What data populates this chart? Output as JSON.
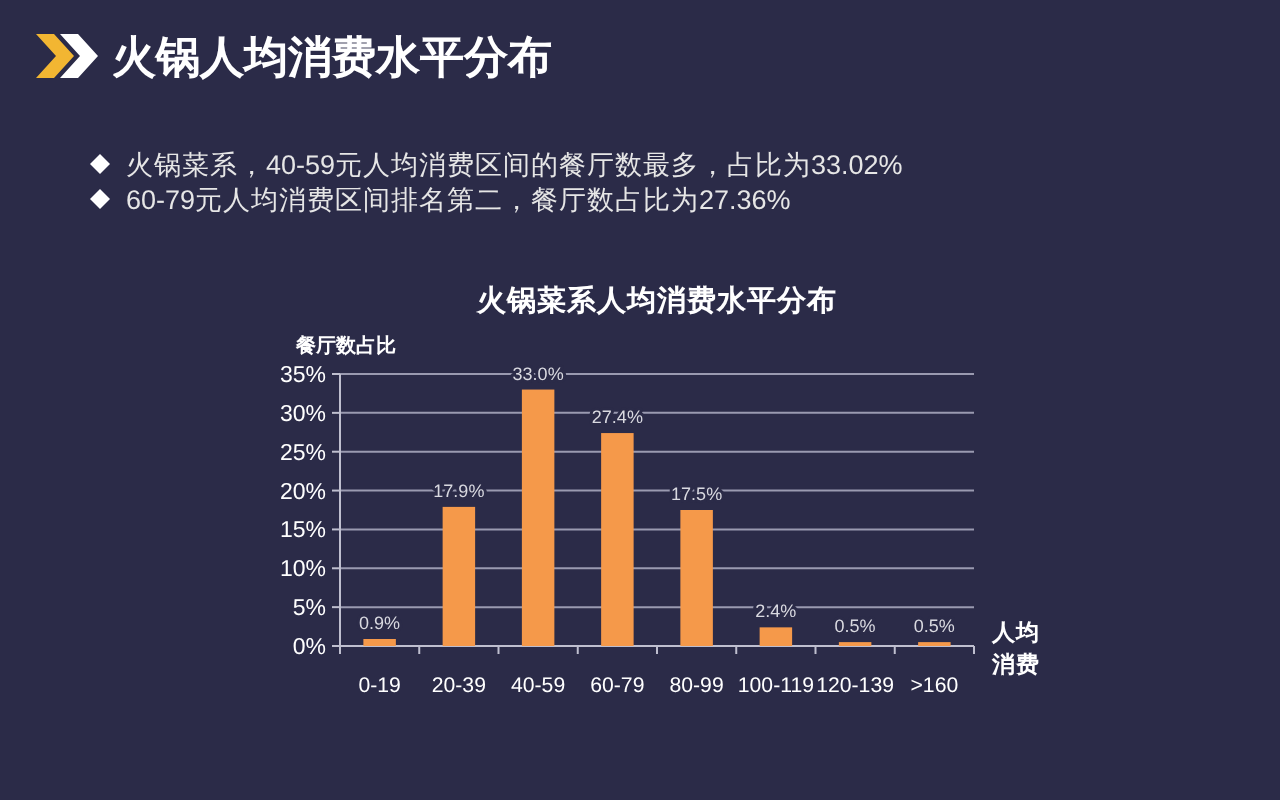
{
  "chart_data": {
    "type": "bar",
    "title": "火锅人均消费水平分布",
    "subtitle": "火锅菜系人均消费水平分布",
    "annotations": [
      "火锅菜系，40-59元人均消费区间的餐厅数最多，占比为33.02%",
      "60-79元人均消费区间排名第二，餐厅数占比为27.36%"
    ],
    "ylabel": "餐厅数占比",
    "xlabel": "人均消费",
    "categories": [
      "0-19",
      "20-39",
      "40-59",
      "60-79",
      "80-99",
      "100-119",
      "120-139",
      ">160"
    ],
    "values": [
      0.9,
      17.9,
      33.0,
      27.4,
      17.5,
      2.4,
      0.5,
      0.5
    ],
    "value_labels": [
      "0.9%",
      "17.9%",
      "33.0%",
      "27.4%",
      "17.5%",
      "2.4%",
      "0.5%",
      "0.5%"
    ],
    "color": "#f5994a",
    "ylim": [
      0,
      35
    ],
    "yticks": [
      {
        "value": 0,
        "label": "0%"
      },
      {
        "value": 5,
        "label": "5%"
      },
      {
        "value": 10,
        "label": "10%"
      },
      {
        "value": 15,
        "label": "15%"
      },
      {
        "value": 20,
        "label": "20%"
      },
      {
        "value": 25,
        "label": "25%"
      },
      {
        "value": 30,
        "label": "30%"
      },
      {
        "value": 35,
        "label": "35%"
      }
    ],
    "grid": "y"
  }
}
